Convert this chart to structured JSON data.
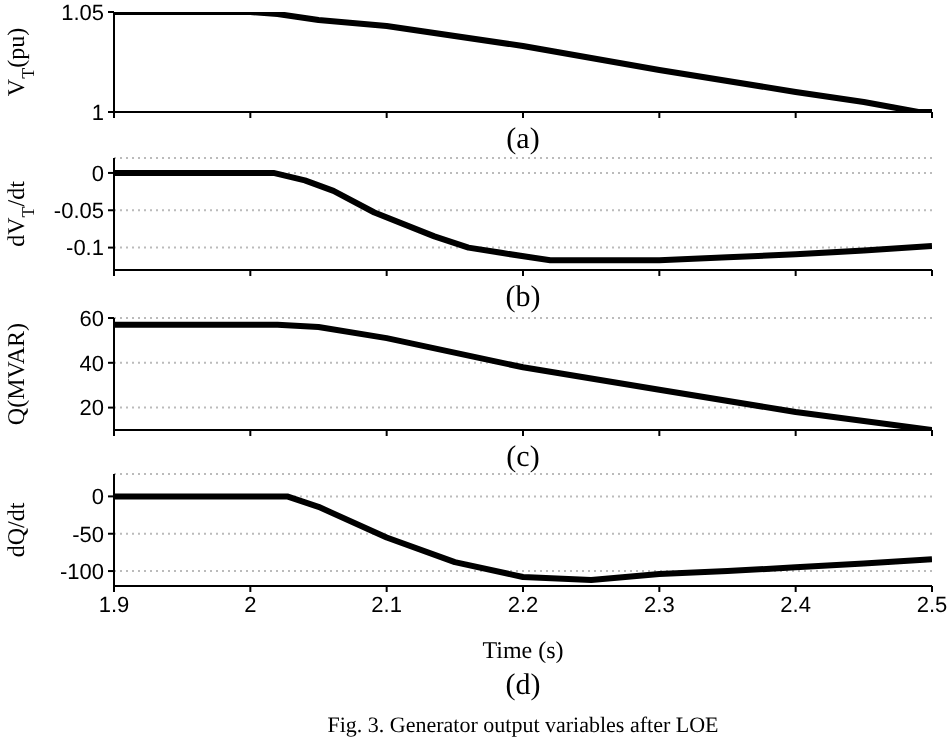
{
  "chart_data": [
    {
      "type": "line",
      "ylabel": "V$_{T}$(pu)",
      "annotations": [
        "(a)"
      ],
      "xlim": [
        1.9,
        2.5
      ],
      "xticks": [
        1.9,
        2,
        2.1,
        2.2,
        2.3,
        2.4,
        2.5
      ],
      "ylim": [
        1,
        1.05
      ],
      "yticks": [
        1,
        1.05
      ],
      "tick_labels": "y",
      "marker": "none",
      "line_style": "solid",
      "series": [
        {
          "color": "#000000",
          "x": [
            1.9,
            2.0,
            2.02,
            2.05,
            2.1,
            2.2,
            2.3,
            2.4,
            2.45,
            2.49,
            2.5
          ],
          "values": [
            1.05,
            1.05,
            1.049,
            1.046,
            1.043,
            1.033,
            1.021,
            1.01,
            1.005,
            1.0,
            1.0
          ]
        }
      ]
    },
    {
      "type": "line",
      "ylabel": "dV$_{T}$/dt",
      "annotations": [
        "(b)"
      ],
      "xlim": [
        1.9,
        2.5
      ],
      "xticks": [
        1.9,
        2,
        2.1,
        2.2,
        2.3,
        2.4,
        2.5
      ],
      "ylim": [
        -0.13,
        0.02
      ],
      "yticks": [
        -0.1,
        -0.05,
        0
      ],
      "tick_labels": "y",
      "grid": "y",
      "marker": "none",
      "line_style": "solid",
      "series": [
        {
          "color": "#000000",
          "x": [
            1.9,
            2.017,
            2.04,
            2.061,
            2.091,
            2.135,
            2.16,
            2.184,
            2.22,
            2.3,
            2.35,
            2.4,
            2.45,
            2.5
          ],
          "values": [
            0,
            0,
            -0.01,
            -0.024,
            -0.053,
            -0.085,
            -0.1,
            -0.107,
            -0.117,
            -0.117,
            -0.113,
            -0.109,
            -0.104,
            -0.098
          ]
        }
      ]
    },
    {
      "type": "line",
      "ylabel": "Q(MVAR)",
      "annotations": [
        "(c)"
      ],
      "xlim": [
        1.9,
        2.5
      ],
      "xticks": [
        1.9,
        2,
        2.1,
        2.2,
        2.3,
        2.4,
        2.5
      ],
      "ylim": [
        10,
        60
      ],
      "yticks": [
        20,
        40,
        60
      ],
      "tick_labels": "y",
      "grid": "y",
      "marker": "none",
      "line_style": "solid",
      "series": [
        {
          "color": "#000000",
          "x": [
            1.9,
            2.02,
            2.05,
            2.1,
            2.2,
            2.3,
            2.4,
            2.45,
            2.5
          ],
          "values": [
            57,
            57,
            56,
            51,
            38,
            28,
            18,
            14,
            10
          ]
        }
      ]
    },
    {
      "type": "line",
      "ylabel": "dQ/dt",
      "xlabel": "Time (s)",
      "annotations": [
        "(d)",
        "Fig. 3.  Generator output variables after LOE"
      ],
      "xlim": [
        1.9,
        2.5
      ],
      "xticks": [
        1.9,
        2,
        2.1,
        2.2,
        2.3,
        2.4,
        2.5
      ],
      "ylim": [
        -120,
        30
      ],
      "yticks": [
        -100,
        -50,
        0
      ],
      "grid": "y",
      "marker": "none",
      "line_style": "solid",
      "series": [
        {
          "color": "#000000",
          "x": [
            1.9,
            2.027,
            2.05,
            2.1,
            2.15,
            2.2,
            2.25,
            2.3,
            2.35,
            2.4,
            2.45,
            2.5
          ],
          "values": [
            0,
            0,
            -14,
            -55,
            -88,
            -108,
            -112,
            -104,
            -100,
            -95,
            -90,
            -84
          ]
        }
      ]
    }
  ]
}
